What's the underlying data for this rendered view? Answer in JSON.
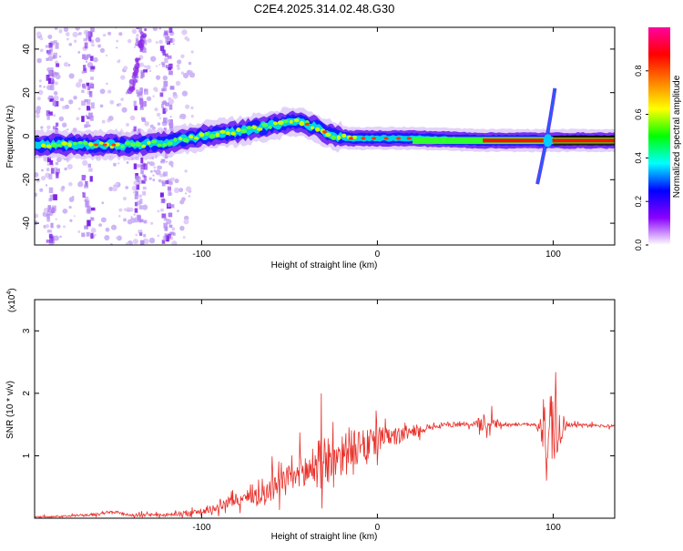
{
  "figure_title": "C2E4.2025.314.02.48.G30",
  "colorbar": {
    "label": "Normalized spectral amplitude",
    "range": [
      0.0,
      1.0
    ],
    "ticks": [
      {
        "value": 0.0,
        "label": "0.0"
      },
      {
        "value": 0.2,
        "label": "0.2"
      },
      {
        "value": 0.4,
        "label": "0.4"
      },
      {
        "value": 0.6,
        "label": "0.6"
      },
      {
        "value": 0.8,
        "label": "0.8"
      }
    ],
    "colors": [
      "#ffffff",
      "#8a00ff",
      "#0000ff",
      "#00ffff",
      "#00ff00",
      "#ffff00",
      "#ff8000",
      "#ff0000",
      "#ff00a0"
    ]
  },
  "chart_data": [
    {
      "type": "heatmap",
      "title": "",
      "xlabel": "Height of straight line (km)",
      "ylabel": "Frequency (Hz)",
      "xlim": [
        -195,
        135
      ],
      "ylim": [
        -50,
        50
      ],
      "xticks": [
        {
          "value": -100,
          "label": "-100"
        },
        {
          "value": 0,
          "label": "0"
        },
        {
          "value": 100,
          "label": "100"
        }
      ],
      "yticks": [
        {
          "value": -40,
          "label": "-40"
        },
        {
          "value": -20,
          "label": "-20"
        },
        {
          "value": 0,
          "label": "0"
        },
        {
          "value": 20,
          "label": "20"
        },
        {
          "value": 40,
          "label": "40"
        }
      ],
      "ridge": {
        "description": "center frequency of the main spectral band vs height",
        "x": [
          -195,
          -160,
          -140,
          -120,
          -100,
          -80,
          -60,
          -45,
          -35,
          -25,
          -15,
          0,
          20,
          60,
          90,
          100,
          135
        ],
        "y": [
          -4,
          -4,
          -4,
          -3,
          0,
          2,
          5,
          7,
          4,
          0,
          -1,
          -1,
          -1,
          -2,
          -2,
          -2,
          -2
        ]
      },
      "features": [
        {
          "name": "vertical streak",
          "x": -185
        },
        {
          "name": "vertical streak",
          "x": -165
        },
        {
          "name": "vertical streak",
          "x": -135
        },
        {
          "name": "vertical streak",
          "x": -120
        },
        {
          "name": "chirp",
          "x_center": 97,
          "y_range": [
            -22,
            22
          ]
        }
      ]
    },
    {
      "type": "line",
      "title": "",
      "xlabel": "Height of straight line (km)",
      "ylabel": "SNR (10 * v/v)",
      "y_scale_label": "(x10",
      "y_scale_exponent": "4",
      "xlim": [
        -195,
        135
      ],
      "ylim": [
        0,
        3.5
      ],
      "xticks": [
        {
          "value": -100,
          "label": "-100"
        },
        {
          "value": 0,
          "label": "0"
        },
        {
          "value": 100,
          "label": "100"
        }
      ],
      "yticks": [
        {
          "value": 1,
          "label": "1"
        },
        {
          "value": 2,
          "label": "2"
        },
        {
          "value": 3,
          "label": "3"
        }
      ],
      "color": "#e8302a",
      "series": [
        {
          "name": "SNR",
          "x": [
            -195,
            -180,
            -160,
            -150,
            -140,
            -120,
            -100,
            -90,
            -80,
            -70,
            -60,
            -50,
            -40,
            -30,
            -20,
            -10,
            0,
            10,
            20,
            30,
            40,
            50,
            60,
            65,
            70,
            80,
            90,
            95,
            98,
            100,
            102,
            105,
            110,
            120,
            135
          ],
          "y": [
            0.02,
            0.03,
            0.06,
            0.1,
            0.05,
            0.05,
            0.1,
            0.2,
            0.3,
            0.35,
            0.45,
            0.6,
            0.75,
            0.95,
            1.05,
            1.1,
            1.25,
            1.3,
            1.4,
            1.45,
            1.5,
            1.5,
            1.52,
            1.55,
            1.5,
            1.5,
            1.5,
            1.5,
            1.5,
            1.5,
            1.45,
            1.5,
            1.5,
            1.48,
            1.48
          ]
        }
      ],
      "noise_envelope": {
        "x": [
          -195,
          -150,
          -120,
          -100,
          -80,
          -60,
          -45,
          -35,
          -25,
          -15,
          -5,
          10,
          30,
          55,
          60,
          65,
          70,
          80,
          90,
          95,
          97,
          99,
          101,
          103,
          105,
          108,
          135
        ],
        "amplitude": [
          0.02,
          0.05,
          0.05,
          0.1,
          0.2,
          0.4,
          0.6,
          0.75,
          0.9,
          0.7,
          0.5,
          0.3,
          0.1,
          0.06,
          0.3,
          0.25,
          0.08,
          0.05,
          0.05,
          0.9,
          1.6,
          1.2,
          1.3,
          0.8,
          0.5,
          0.08,
          0.04
        ]
      }
    }
  ]
}
